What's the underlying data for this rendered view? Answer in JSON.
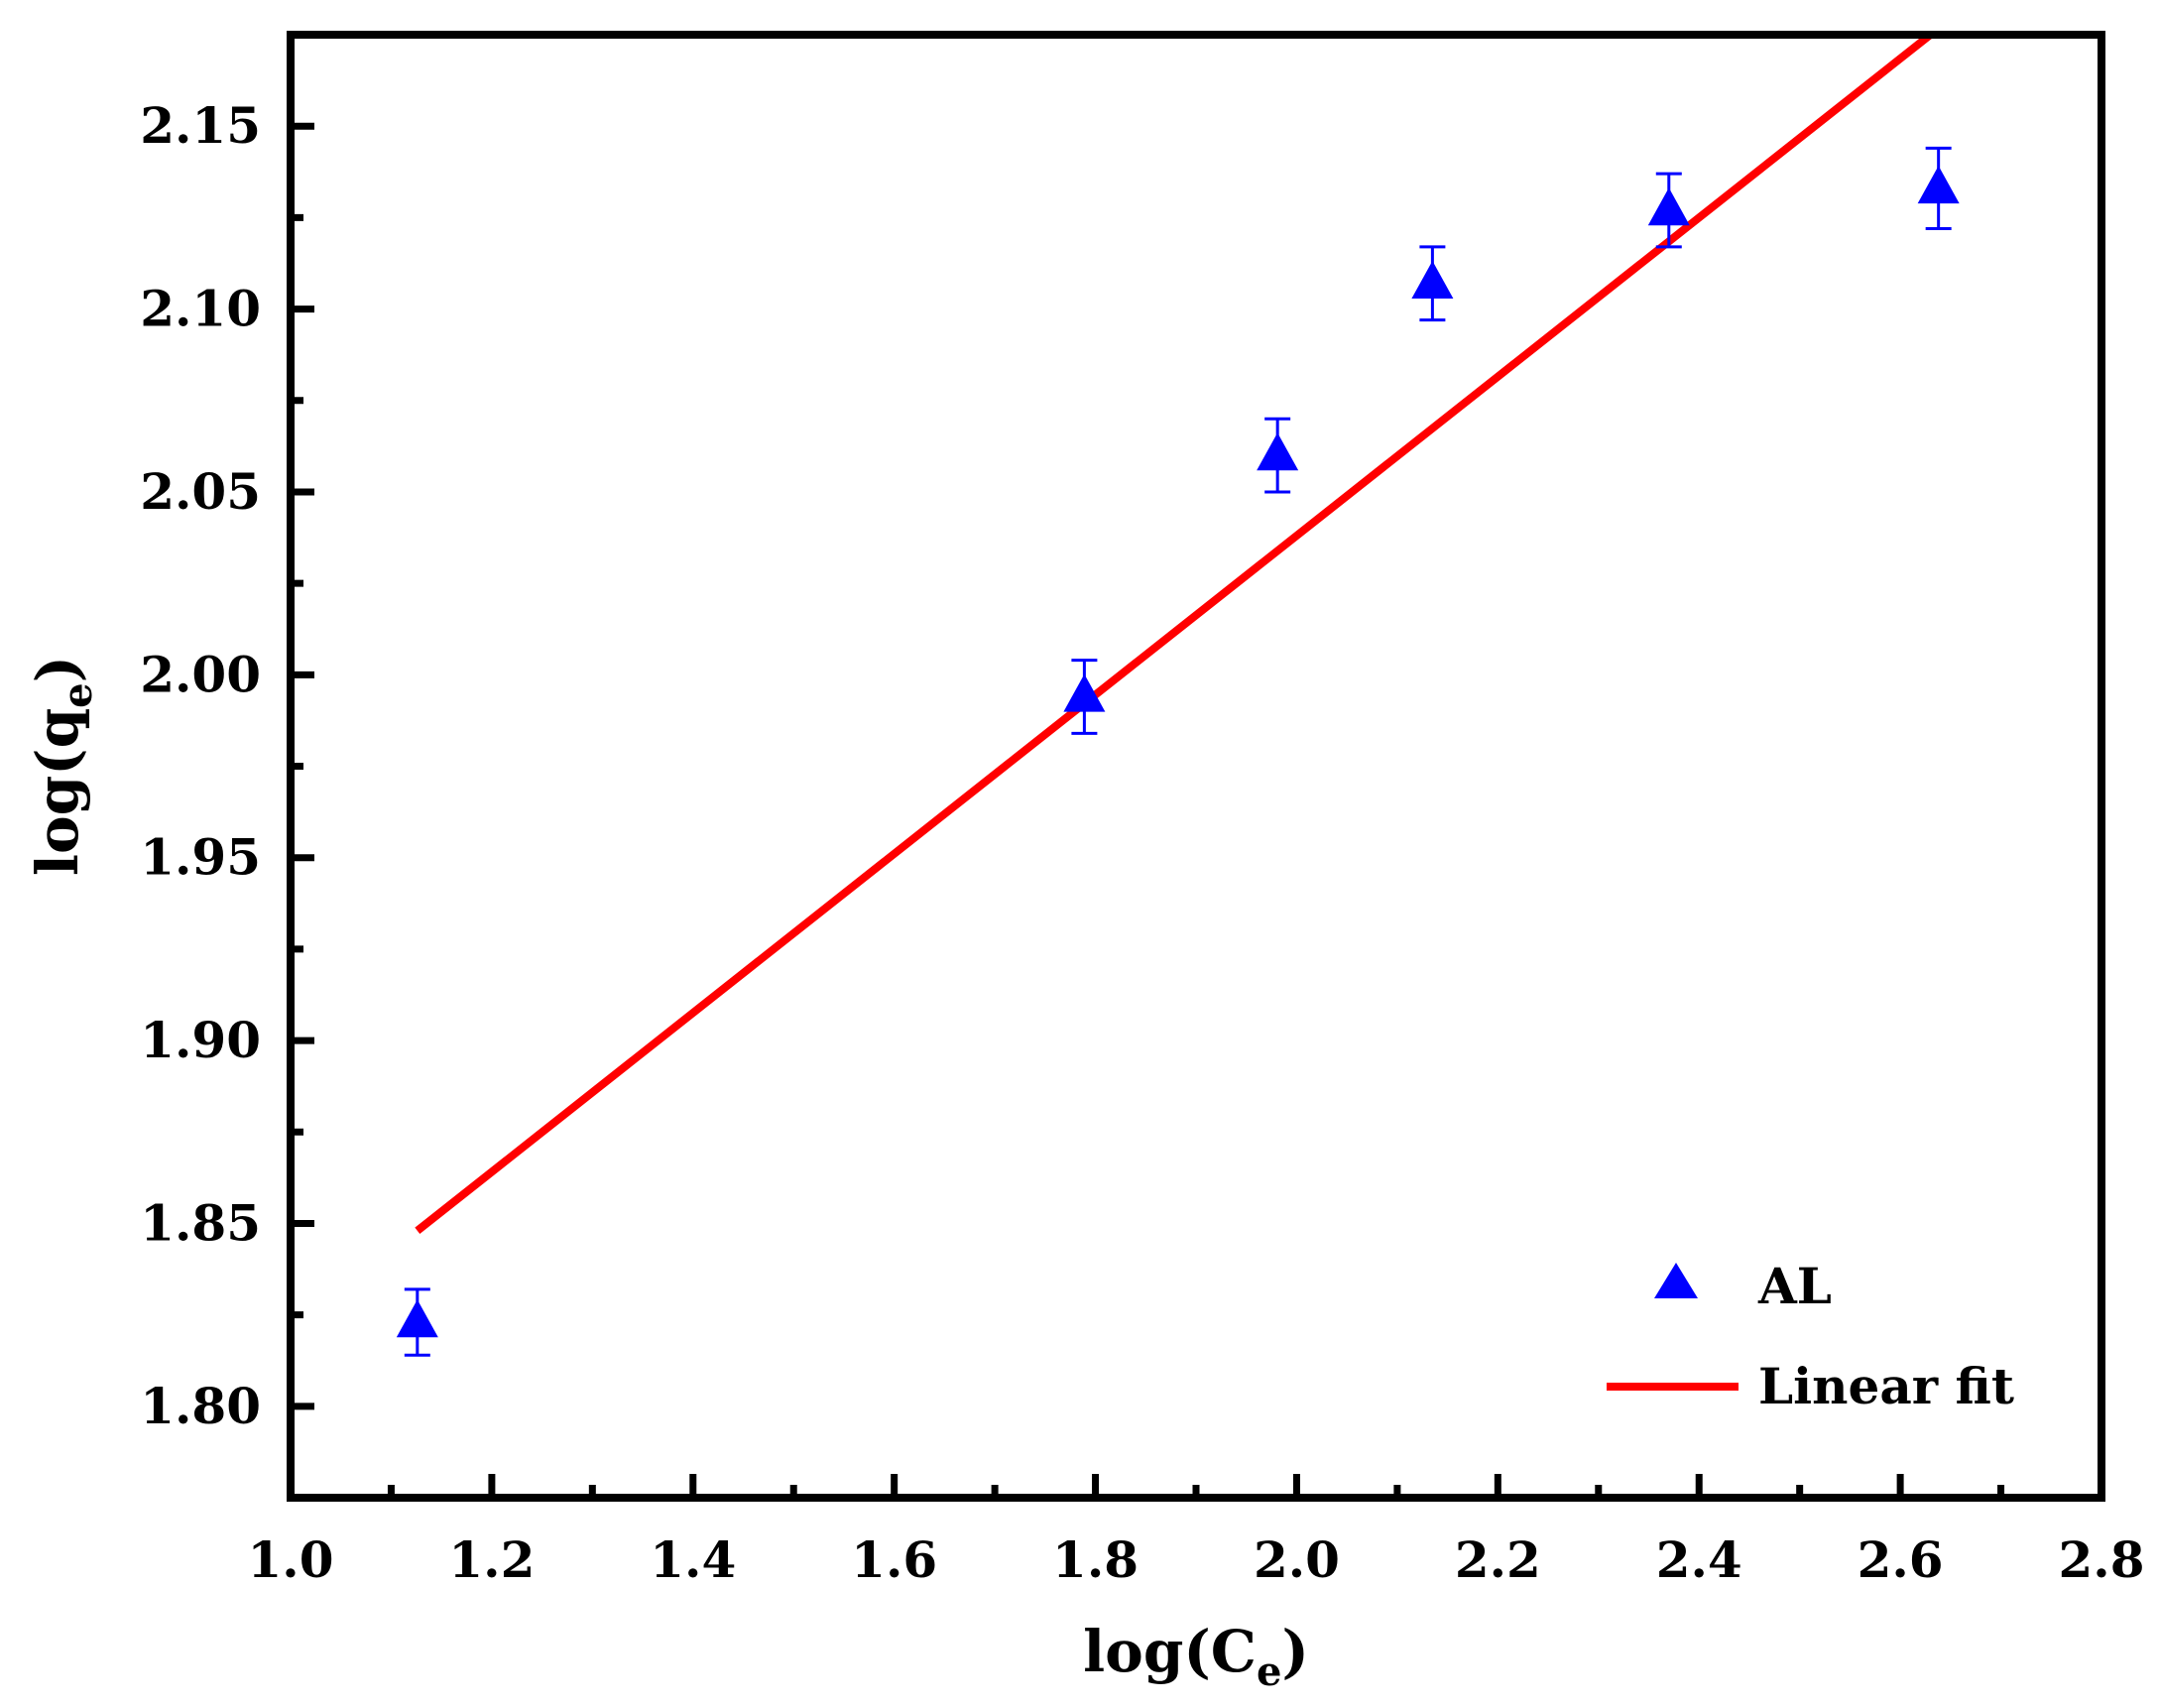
{
  "chart_data": {
    "type": "scatter",
    "xlabel": {
      "main": "log(C",
      "sub": "e",
      "tail": ")"
    },
    "ylabel": {
      "main": "log(q",
      "sub": "e",
      "tail": ")"
    },
    "xlim": [
      1.0,
      2.8
    ],
    "ylim": [
      1.775,
      2.175
    ],
    "x_ticks": [
      "1.0",
      "1.2",
      "1.4",
      "1.6",
      "1.8",
      "2.0",
      "2.2",
      "2.4",
      "2.6",
      "2.8"
    ],
    "y_ticks": [
      "1.80",
      "1.85",
      "1.90",
      "1.95",
      "2.00",
      "2.05",
      "2.10",
      "2.15"
    ],
    "x_tick_values": [
      1.0,
      1.2,
      1.4,
      1.6,
      1.8,
      2.0,
      2.2,
      2.4,
      2.6,
      2.8
    ],
    "y_tick_values": [
      1.8,
      1.85,
      1.9,
      1.95,
      2.0,
      2.05,
      2.1,
      2.15
    ],
    "x_minor_ticks": [
      1.1,
      1.3,
      1.5,
      1.7,
      1.9,
      2.1,
      2.3,
      2.5,
      2.7
    ],
    "y_minor_ticks": [
      1.825,
      1.875,
      1.925,
      1.975,
      2.025,
      2.075,
      2.125
    ],
    "series": [
      {
        "name": "AL",
        "kind": "scatter",
        "marker": "triangle",
        "color": "#0000ff",
        "x": [
          1.126,
          1.789,
          1.981,
          2.135,
          2.37,
          2.638
        ],
        "y": [
          1.823,
          1.994,
          2.06,
          2.107,
          2.127,
          2.133
        ],
        "error": [
          0.009,
          0.01,
          0.01,
          0.01,
          0.01,
          0.011
        ]
      },
      {
        "name": "Linear fit",
        "kind": "line",
        "color": "#ff0000",
        "x": [
          1.126,
          2.63
        ],
        "y": [
          1.848,
          2.175
        ]
      }
    ],
    "legend": {
      "position": "bottom-right",
      "entries": [
        "AL",
        "Linear fit"
      ]
    },
    "grid": false
  }
}
